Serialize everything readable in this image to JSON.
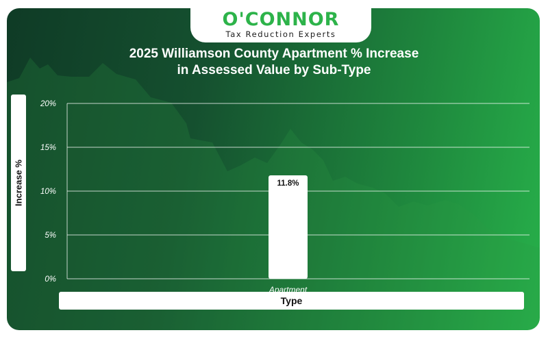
{
  "brand": {
    "name": "O'CONNOR",
    "tagline": "Tax Reduction Experts"
  },
  "colors": {
    "accent": "#2db34a",
    "bar": "#ffffff",
    "background_dark": "#0f3b26",
    "background_light": "#27b04a"
  },
  "chart_data": {
    "type": "bar",
    "title": "2025 Williamson County Apartment % Increase in Assessed Value by Sub-Type",
    "title_lines": [
      "2025 Williamson County Apartment % Increase",
      "in Assessed Value by Sub-Type"
    ],
    "xlabel": "Type",
    "ylabel": "Increase %",
    "categories": [
      "Apartment"
    ],
    "values": [
      11.8
    ],
    "value_labels": [
      "11.8%"
    ],
    "ylim": [
      0,
      20
    ],
    "yticks": [
      "0%",
      "5%",
      "10%",
      "15%",
      "20%"
    ],
    "grid": true
  }
}
